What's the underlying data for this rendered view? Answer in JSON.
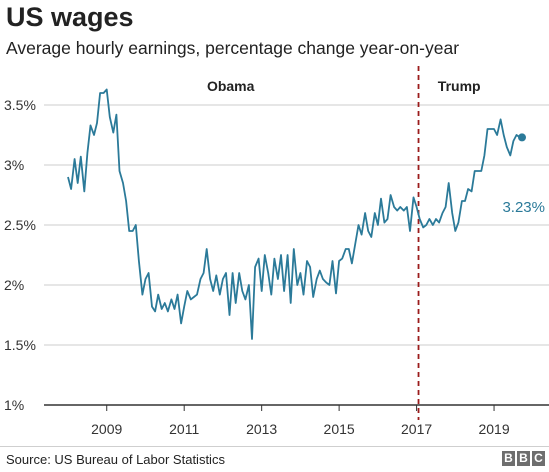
{
  "header": {
    "title": "US wages",
    "subtitle": "Average hourly earnings, percentage change year-on-year"
  },
  "footer": {
    "source": "Source: US Bureau of Labor Statistics",
    "logo_letters": [
      "B",
      "B",
      "C"
    ]
  },
  "colors": {
    "line": "#2b7a99",
    "divider": "#9b1c1c",
    "grid": "#cccccc",
    "baseline": "#333333",
    "end_label": "#2b7a99"
  },
  "chart_data": {
    "type": "line",
    "ylim": [
      1.0,
      3.75
    ],
    "xlim": [
      2007.75,
      2019.9
    ],
    "y_ticks": [
      {
        "value": 3.5,
        "label": "3.5%"
      },
      {
        "value": 3.0,
        "label": "3%"
      },
      {
        "value": 2.5,
        "label": "2.5%"
      },
      {
        "value": 2.0,
        "label": "2%"
      },
      {
        "value": 1.5,
        "label": "1.5%"
      },
      {
        "value": 1.0,
        "label": "1%"
      }
    ],
    "x_ticks": [
      {
        "value": 2009,
        "label": "2009"
      },
      {
        "value": 2011,
        "label": "2011"
      },
      {
        "value": 2013,
        "label": "2013"
      },
      {
        "value": 2015,
        "label": "2015"
      },
      {
        "value": 2017,
        "label": "2017"
      },
      {
        "value": 2019,
        "label": "2019"
      }
    ],
    "period_labels": [
      {
        "label": "Obama",
        "x": 2012.2,
        "y": 3.6
      },
      {
        "label": "Trump",
        "x": 2018.1,
        "y": 3.6
      }
    ],
    "divider_x": 2017.05,
    "end_label": "3.23%",
    "end_value": 3.23,
    "x": [
      2008.0,
      2008.08,
      2008.17,
      2008.25,
      2008.33,
      2008.42,
      2008.5,
      2008.58,
      2008.67,
      2008.75,
      2008.83,
      2008.92,
      2009.0,
      2009.08,
      2009.17,
      2009.25,
      2009.33,
      2009.42,
      2009.5,
      2009.58,
      2009.67,
      2009.75,
      2009.83,
      2009.92,
      2010.0,
      2010.08,
      2010.17,
      2010.25,
      2010.33,
      2010.42,
      2010.5,
      2010.58,
      2010.67,
      2010.75,
      2010.83,
      2010.92,
      2011.0,
      2011.08,
      2011.17,
      2011.25,
      2011.33,
      2011.42,
      2011.5,
      2011.58,
      2011.67,
      2011.75,
      2011.83,
      2011.92,
      2012.0,
      2012.08,
      2012.17,
      2012.25,
      2012.33,
      2012.42,
      2012.5,
      2012.58,
      2012.67,
      2012.75,
      2012.83,
      2012.92,
      2013.0,
      2013.08,
      2013.17,
      2013.25,
      2013.33,
      2013.42,
      2013.5,
      2013.58,
      2013.67,
      2013.75,
      2013.83,
      2013.92,
      2014.0,
      2014.08,
      2014.17,
      2014.25,
      2014.33,
      2014.42,
      2014.5,
      2014.58,
      2014.67,
      2014.75,
      2014.83,
      2014.92,
      2015.0,
      2015.08,
      2015.17,
      2015.25,
      2015.33,
      2015.42,
      2015.5,
      2015.58,
      2015.67,
      2015.75,
      2015.83,
      2015.92,
      2016.0,
      2016.08,
      2016.17,
      2016.25,
      2016.33,
      2016.42,
      2016.5,
      2016.58,
      2016.67,
      2016.75,
      2016.83,
      2016.92,
      2017.0,
      2017.08,
      2017.17,
      2017.25,
      2017.33,
      2017.42,
      2017.5,
      2017.58,
      2017.67,
      2017.75,
      2017.83,
      2017.92,
      2018.0,
      2018.08,
      2018.17,
      2018.25,
      2018.33,
      2018.42,
      2018.5,
      2018.58,
      2018.67,
      2018.75,
      2018.83,
      2018.92,
      2019.0,
      2019.08,
      2019.17,
      2019.25,
      2019.33,
      2019.42,
      2019.5,
      2019.58,
      2019.67
    ],
    "series": [
      {
        "values": [
          2.9,
          2.8,
          3.05,
          2.85,
          3.07,
          2.78,
          3.1,
          3.33,
          3.25,
          3.35,
          3.6,
          3.6,
          3.63,
          3.4,
          3.27,
          3.42,
          2.95,
          2.85,
          2.7,
          2.45,
          2.45,
          2.5,
          2.2,
          1.92,
          2.05,
          2.1,
          1.82,
          1.78,
          1.92,
          1.8,
          1.85,
          1.78,
          1.88,
          1.8,
          1.92,
          1.68,
          1.82,
          1.95,
          1.88,
          1.9,
          1.92,
          2.05,
          2.1,
          2.3,
          2.05,
          1.95,
          2.08,
          1.92,
          2.05,
          2.1,
          1.75,
          2.1,
          1.85,
          2.1,
          1.95,
          1.88,
          2.0,
          1.55,
          2.15,
          2.22,
          1.95,
          2.25,
          2.1,
          1.92,
          2.22,
          2.05,
          2.25,
          1.95,
          2.25,
          1.85,
          2.3,
          2.0,
          2.1,
          1.92,
          2.2,
          2.15,
          1.9,
          2.05,
          2.12,
          2.05,
          2.02,
          2.0,
          2.2,
          1.93,
          2.2,
          2.22,
          2.3,
          2.3,
          2.18,
          2.35,
          2.5,
          2.42,
          2.6,
          2.45,
          2.4,
          2.6,
          2.5,
          2.72,
          2.52,
          2.55,
          2.75,
          2.65,
          2.62,
          2.65,
          2.62,
          2.65,
          2.45,
          2.73,
          2.65,
          2.55,
          2.48,
          2.5,
          2.55,
          2.5,
          2.55,
          2.52,
          2.6,
          2.65,
          2.85,
          2.6,
          2.45,
          2.52,
          2.7,
          2.7,
          2.8,
          2.78,
          2.95,
          2.95,
          2.95,
          3.08,
          3.3,
          3.3,
          3.3,
          3.25,
          3.38,
          3.25,
          3.15,
          3.08,
          3.2,
          3.25,
          3.23
        ]
      }
    ]
  }
}
